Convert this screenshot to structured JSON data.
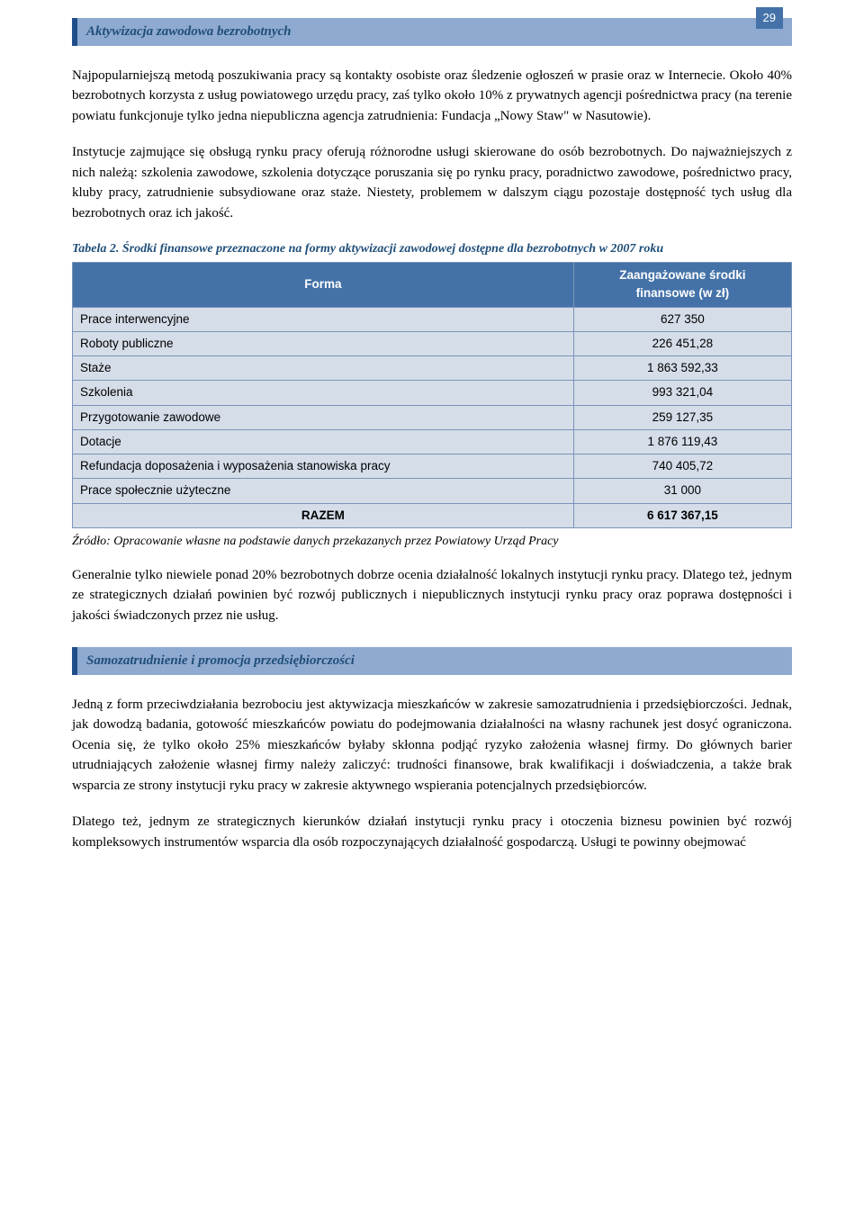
{
  "page_number": "29",
  "header1": "Aktywizacja zawodowa bezrobotnych",
  "para1": "Najpopularniejszą metodą poszukiwania pracy są kontakty osobiste oraz śledzenie ogłoszeń w prasie oraz w Internecie. Około 40% bezrobotnych korzysta z usług powiatowego urzędu pracy, zaś tylko około 10% z prywatnych agencji pośrednictwa pracy (na terenie powiatu funkcjonuje tylko jedna niepubliczna agencja zatrudnienia: Fundacja „Nowy Staw\" w Nasutowie).",
  "para2": "Instytucje zajmujące się obsługą rynku pracy oferują różnorodne usługi skierowane do osób bezrobotnych. Do najważniejszych z nich należą: szkolenia zawodowe, szkolenia dotyczące poruszania się po rynku pracy, poradnictwo zawodowe, pośrednictwo pracy, kluby pracy, zatrudnienie subsydiowane oraz staże. Niestety, problemem w dalszym ciągu pozostaje dostępność tych usług dla bezrobotnych oraz ich jakość.",
  "table_caption": "Tabela 2. Środki finansowe przeznaczone na formy aktywizacji zawodowej dostępne dla bezrobotnych w 2007 roku",
  "table": {
    "col1_header": "Forma",
    "col2_header_line1": "Zaangażowane środki",
    "col2_header_line2": "finansowe (w zł)",
    "rows": [
      {
        "label": "Prace interwencyjne",
        "value": "627 350"
      },
      {
        "label": "Roboty publiczne",
        "value": "226 451,28"
      },
      {
        "label": "Staże",
        "value": "1 863 592,33"
      },
      {
        "label": "Szkolenia",
        "value": "993 321,04"
      },
      {
        "label": "Przygotowanie zawodowe",
        "value": "259 127,35"
      },
      {
        "label": "Dotacje",
        "value": "1 876 119,43"
      },
      {
        "label": "Refundacja doposażenia i wyposażenia stanowiska pracy",
        "value": "740 405,72"
      },
      {
        "label": "Prace społecznie użyteczne",
        "value": "31 000"
      }
    ],
    "total_label": "RAZEM",
    "total_value": "6 617 367,15"
  },
  "source_note": "Źródło: Opracowanie własne na podstawie danych przekazanych przez Powiatowy Urząd Pracy",
  "para3": "Generalnie tylko niewiele ponad 20% bezrobotnych dobrze ocenia działalność lokalnych instytucji rynku pracy. Dlatego też, jednym ze strategicznych działań powinien być rozwój publicznych i niepublicznych instytucji rynku pracy oraz poprawa dostępności i jakości świadczonych przez nie usług.",
  "header2": "Samozatrudnienie i promocja przedsiębiorczości",
  "para4": "Jedną z form przeciwdziałania bezrobociu jest aktywizacja mieszkańców w zakresie samozatrudnienia i przedsiębiorczości. Jednak, jak dowodzą badania, gotowość mieszkańców powiatu do podejmowania działalności na własny rachunek jest dosyć ograniczona. Ocenia się, że tylko około 25% mieszkańców byłaby skłonna podjąć ryzyko założenia własnej firmy. Do głównych barier utrudniających założenie własnej firmy należy zaliczyć: trudności finansowe, brak kwalifikacji i doświadczenia, a także brak wsparcia ze strony instytucji ryku pracy w zakresie aktywnego wspierania potencjalnych przedsiębiorców.",
  "para5": "Dlatego też, jednym ze strategicznych kierunków działań instytucji rynku pracy i otoczenia biznesu powinien być rozwój kompleksowych instrumentów wsparcia dla osób rozpoczynających działalność gospodarczą. Usługi te powinny obejmować"
}
